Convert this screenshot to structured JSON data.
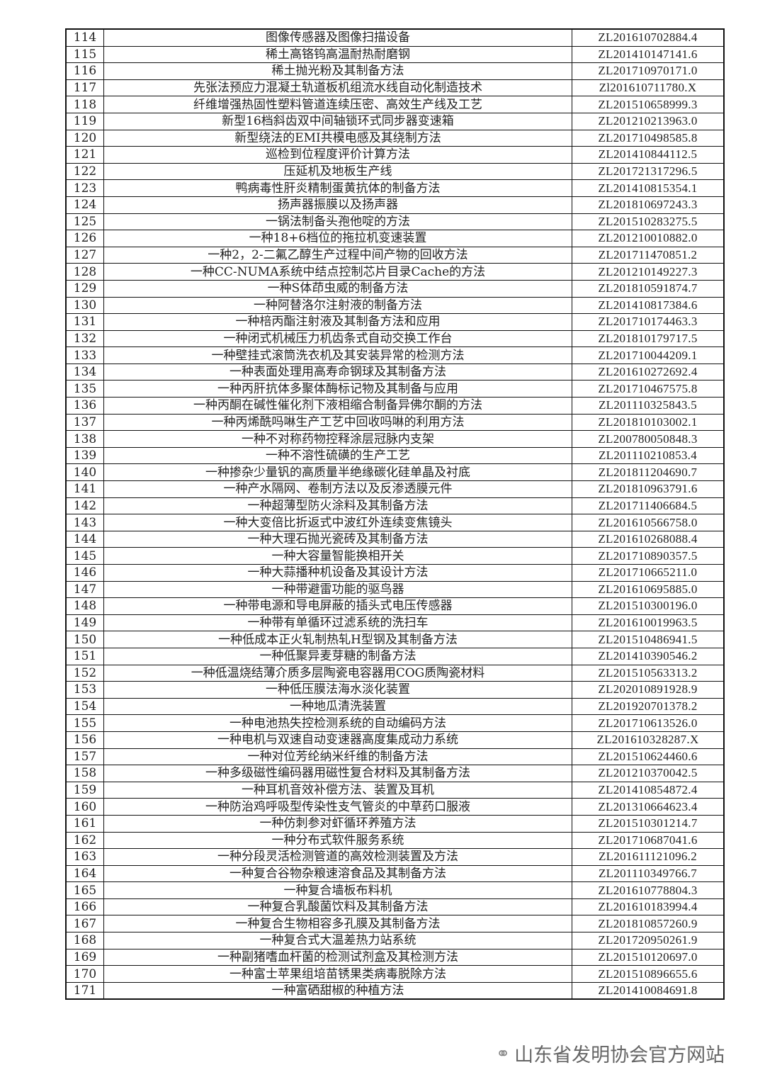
{
  "rows": [
    [
      "114",
      "图像传感器及图像扫描设备",
      "ZL201610702884.4"
    ],
    [
      "115",
      "稀土高铬钨高温耐热耐磨钢",
      "ZL201410147141.6"
    ],
    [
      "116",
      "稀土抛光粉及其制备方法",
      "ZL201710970171.0"
    ],
    [
      "117",
      "先张法预应力混凝土轨道板机组流水线自动化制造技术",
      "Zl201610711780.X"
    ],
    [
      "118",
      "纤维增强热固性塑料管道连续压密、高效生产线及工艺",
      "ZL201510658999.3"
    ],
    [
      "119",
      "新型16档斜齿双中间轴锁环式同步器变速箱",
      "ZL201210213963.0"
    ],
    [
      "120",
      "新型绕法的EMI共模电感及其绕制方法",
      "ZL201710498585.8"
    ],
    [
      "121",
      "巡检到位程度评价计算方法",
      "ZL201410844112.5"
    ],
    [
      "122",
      "压延机及地板生产线",
      "ZL201721317296.5"
    ],
    [
      "123",
      "鸭病毒性肝炎精制蛋黄抗体的制备方法",
      "ZL201410815354.1"
    ],
    [
      "124",
      "扬声器振膜以及扬声器",
      "ZL201810697243.3"
    ],
    [
      "125",
      "一锅法制备头孢他啶的方法",
      "ZL201510283275.5"
    ],
    [
      "126",
      "一种18+6档位的拖拉机变速装置",
      "ZL201210010882.0"
    ],
    [
      "127",
      "一种2，2-二氟乙醇生产过程中间产物的回收方法",
      "ZL201711470851.2"
    ],
    [
      "128",
      "一种CC-NUMA系统中结点控制芯片目录Cache的方法",
      "ZL201210149227.3"
    ],
    [
      "129",
      "一种S体茚虫威的制备方法",
      "ZL201810591874.7"
    ],
    [
      "130",
      "一种阿替洛尔注射液的制备方法",
      "ZL201410817384.6"
    ],
    [
      "131",
      "一种棓丙酯注射液及其制备方法和应用",
      "ZL201710174463.3"
    ],
    [
      "132",
      "一种闭式机械压力机齿条式自动交换工作台",
      "ZL201810179717.5"
    ],
    [
      "133",
      "一种壁挂式滚筒洗衣机及其安装异常的检测方法",
      "ZL201710044209.1"
    ],
    [
      "134",
      "一种表面处理用高寿命钢球及其制备方法",
      "ZL201610272692.4"
    ],
    [
      "135",
      "一种丙肝抗体多聚体酶标记物及其制备与应用",
      "ZL201710467575.8"
    ],
    [
      "136",
      "一种丙酮在碱性催化剂下液相缩合制备异佛尔酮的方法",
      "ZL201110325843.5"
    ],
    [
      "137",
      "一种丙烯酰吗啉生产工艺中回收吗啉的利用方法",
      "ZL201810103002.1"
    ],
    [
      "138",
      "一种不对称药物控释涂层冠脉内支架",
      "ZL200780050848.3"
    ],
    [
      "139",
      "一种不溶性硫磺的生产工艺",
      "ZL201110210853.4"
    ],
    [
      "140",
      "一种掺杂少量钒的高质量半绝缘碳化硅单晶及衬底",
      "ZL201811204690.7"
    ],
    [
      "141",
      "一种产水隔网、卷制方法以及反渗透膜元件",
      "ZL201810963791.6"
    ],
    [
      "142",
      "一种超薄型防火涂料及其制备方法",
      "ZL201711406684.5"
    ],
    [
      "143",
      "一种大变倍比折返式中波红外连续变焦镜头",
      "ZL201610566758.0"
    ],
    [
      "144",
      "一种大理石抛光瓷砖及其制备方法",
      "ZL201610268088.4"
    ],
    [
      "145",
      "一种大容量智能换相开关",
      "ZL201710890357.5"
    ],
    [
      "146",
      "一种大蒜播种机设备及其设计方法",
      "ZL201710665211.0"
    ],
    [
      "147",
      "一种带避雷功能的驱鸟器",
      "ZL201610695885.0"
    ],
    [
      "148",
      "一种带电源和导电屏蔽的插头式电压传感器",
      "ZL201510300196.0"
    ],
    [
      "149",
      "一种带有单循环过滤系统的洗扫车",
      "ZL201610019963.5"
    ],
    [
      "150",
      "一种低成本正火轧制热轧H型钢及其制备方法",
      "ZL201510486941.5"
    ],
    [
      "151",
      "一种低聚异麦芽糖的制备方法",
      "ZL201410390546.2"
    ],
    [
      "152",
      "一种低温烧结薄介质多层陶瓷电容器用COG质陶瓷材料",
      "ZL201510563313.2"
    ],
    [
      "153",
      "一种低压膜法海水淡化装置",
      "ZL202010891928.9"
    ],
    [
      "154",
      "一种地瓜清洗装置",
      "ZL201920701378.2"
    ],
    [
      "155",
      "一种电池热失控检测系统的自动编码方法",
      "ZL201710613526.0"
    ],
    [
      "156",
      "一种电机与双速自动变速器高度集成动力系统",
      "ZL201610328287.X"
    ],
    [
      "157",
      "一种对位芳纶纳米纤维的制备方法",
      "ZL201510624460.6"
    ],
    [
      "158",
      "一种多级磁性编码器用磁性复合材料及其制备方法",
      "ZL201210370042.5"
    ],
    [
      "159",
      "一种耳机音效补偿方法、装置及耳机",
      "ZL201410854872.4"
    ],
    [
      "160",
      "一种防治鸡呼吸型传染性支气管炎的中草药口服液",
      "ZL201310664623.4"
    ],
    [
      "161",
      "一种仿刺参对虾循环养殖方法",
      "ZL201510301214.7"
    ],
    [
      "162",
      "一种分布式软件服务系统",
      "ZL201710687041.6"
    ],
    [
      "163",
      "一种分段灵活检测管道的高效检测装置及方法",
      "ZL201611121096.2"
    ],
    [
      "164",
      "一种复合谷物杂粮速溶食品及其制备方法",
      "ZL201110349766.7"
    ],
    [
      "165",
      "一种复合墙板布料机",
      "ZL201610778804.3"
    ],
    [
      "166",
      "一种复合乳酸菌饮料及其制备方法",
      "ZL201610183994.4"
    ],
    [
      "167",
      "一种复合生物相容多孔膜及其制备方法",
      "ZL201810857260.9"
    ],
    [
      "168",
      "一种复合式大温差热力站系统",
      "ZL201720950261.9"
    ],
    [
      "169",
      "一种副猪嗜血杆菌的检测试剂盒及其检测方法",
      "ZL201510120697.0"
    ],
    [
      "170",
      "一种富士苹果组培苗锈果类病毒脱除方法",
      "ZL201510896655.6"
    ],
    [
      "171",
      "一种富硒甜椒的种植方法",
      "ZL201410084691.8"
    ]
  ],
  "watermark": {
    "icon": "wechat-icon",
    "text": "山东省发明协会官方网站"
  }
}
